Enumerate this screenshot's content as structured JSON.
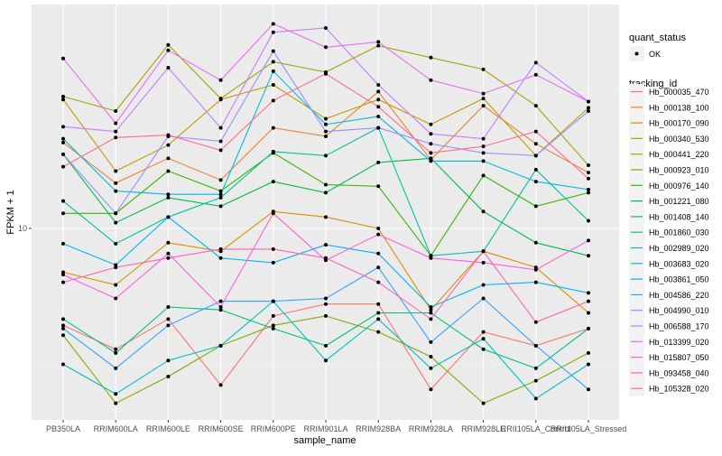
{
  "chart_data": {
    "type": "line",
    "title": "",
    "xlabel": "sample_name",
    "ylabel": "FPKM + 1",
    "yscale": "log10",
    "ylim": [
      3.8,
      31
    ],
    "yticks": [
      {
        "value": 10,
        "label": "10"
      }
    ],
    "grid": true,
    "legend_placement": "right",
    "categories": [
      "PB350LA",
      "RRIM600LA",
      "RRIM600LE",
      "RRIM600SE",
      "RRIM600PE",
      "RRIM901LA",
      "RRIM928BA",
      "RRIM928LA",
      "RRIM928LE",
      "RRII105LA_Control",
      "RRII105LA_Stressed"
    ],
    "shape_legend": {
      "title": "quant_status",
      "items": [
        "OK"
      ]
    },
    "color_legend_title": "tracking_id",
    "series": [
      {
        "name": "Hb_000035_470",
        "color": "#F8766D",
        "values": [
          6.1,
          5.4,
          6.3,
          4.5,
          6.4,
          6.8,
          6.8,
          4.4,
          5.9,
          5.5,
          6.0
        ]
      },
      {
        "name": "Hb_000138_100",
        "color": "#EA8331",
        "values": [
          15.5,
          12.6,
          14.3,
          12.8,
          16.7,
          16.0,
          20.1,
          14.2,
          18.7,
          15.4,
          13.3
        ]
      },
      {
        "name": "Hb_000170_090",
        "color": "#D89000",
        "values": [
          8.0,
          7.5,
          9.3,
          8.9,
          10.9,
          10.6,
          10.0,
          6.6,
          8.9,
          8.2,
          6.5
        ]
      },
      {
        "name": "Hb_000340_530",
        "color": "#C09B00",
        "values": [
          19.3,
          13.4,
          15.3,
          19.3,
          20.8,
          17.5,
          19.3,
          17.0,
          19.4,
          14.5,
          18.5
        ]
      },
      {
        "name": "Hb_000441_220",
        "color": "#A3A500",
        "values": [
          19.6,
          18.2,
          25.5,
          19.4,
          23.4,
          22.2,
          25.4,
          23.9,
          22.5,
          18.7,
          13.8
        ]
      },
      {
        "name": "Hb_000923_010",
        "color": "#7CAE00",
        "values": [
          5.8,
          4.1,
          4.7,
          5.5,
          6.1,
          6.4,
          5.9,
          5.2,
          4.1,
          4.6,
          5.3
        ]
      },
      {
        "name": "Hb_000976_140",
        "color": "#39B600",
        "values": [
          10.8,
          10.8,
          13.4,
          12.1,
          14.7,
          12.5,
          12.4,
          8.7,
          13.1,
          11.2,
          12.0
        ]
      },
      {
        "name": "Hb_001221_080",
        "color": "#00BB4E",
        "values": [
          14.6,
          10.3,
          11.7,
          11.2,
          12.7,
          12.0,
          14.0,
          14.3,
          10.9,
          9.3,
          8.7
        ]
      },
      {
        "name": "Hb_001408_140",
        "color": "#00BF7D",
        "values": [
          6.3,
          5.3,
          6.7,
          6.6,
          6.0,
          5.5,
          6.5,
          6.5,
          5.4,
          4.9,
          6.0
        ]
      },
      {
        "name": "Hb_001860_030",
        "color": "#00C1A3",
        "values": [
          11.5,
          9.25,
          10.6,
          11.7,
          14.8,
          14.5,
          16.7,
          8.7,
          8.9,
          13.5,
          10.4
        ]
      },
      {
        "name": "Hb_002989_020",
        "color": "#00BFC4",
        "values": [
          5.0,
          4.3,
          5.1,
          5.5,
          6.9,
          5.1,
          6.3,
          4.9,
          5.7,
          4.2,
          5.0
        ]
      },
      {
        "name": "Hb_003683_020",
        "color": "#00BAE0",
        "values": [
          15.8,
          12.1,
          11.9,
          11.9,
          22.3,
          17.0,
          17.7,
          14.1,
          14.1,
          12.7,
          12.2
        ]
      },
      {
        "name": "Hb_003861_050",
        "color": "#00B0F6",
        "values": [
          9.25,
          8.3,
          10.6,
          8.6,
          8.4,
          9.2,
          8.8,
          6.7,
          7.5,
          7.6,
          7.2
        ]
      },
      {
        "name": "Hb_004586_220",
        "color": "#35A2FF",
        "values": [
          6.0,
          4.9,
          6.1,
          6.9,
          6.9,
          7.0,
          8.2,
          5.6,
          7.0,
          5.5,
          4.4
        ]
      },
      {
        "name": "Hb_004990_010",
        "color": "#9590FF",
        "values": [
          14.6,
          10.8,
          16.0,
          15.6,
          24.7,
          16.4,
          16.7,
          15.4,
          14.7,
          14.5,
          18.2
        ]
      },
      {
        "name": "Hb_006588_170",
        "color": "#C77CFF",
        "values": [
          16.8,
          16.4,
          22.7,
          16.7,
          27.2,
          27.8,
          20.8,
          16.2,
          15.8,
          23.3,
          19.1
        ]
      },
      {
        "name": "Hb_013399_020",
        "color": "#E76BF3",
        "values": [
          23.8,
          17.1,
          24.8,
          21.3,
          28.4,
          25.2,
          25.9,
          21.3,
          19.9,
          21.9,
          19.1
        ]
      },
      {
        "name": "Hb_015807_050",
        "color": "#FA62DB",
        "values": [
          7.9,
          7.0,
          8.8,
          6.7,
          10.8,
          8.5,
          9.7,
          8.6,
          8.4,
          8.1,
          9.4
        ]
      },
      {
        "name": "Hb_093458_040",
        "color": "#FF62BC",
        "values": [
          7.6,
          8.2,
          8.6,
          9.0,
          9.0,
          8.6,
          7.6,
          6.3,
          8.9,
          6.2,
          6.9
        ]
      },
      {
        "name": "Hb_105328_020",
        "color": "#FF6C91",
        "values": [
          13.7,
          15.9,
          16.1,
          14.9,
          19.2,
          22.0,
          18.6,
          14.7,
          15.2,
          16.4,
          12.9
        ]
      }
    ]
  }
}
